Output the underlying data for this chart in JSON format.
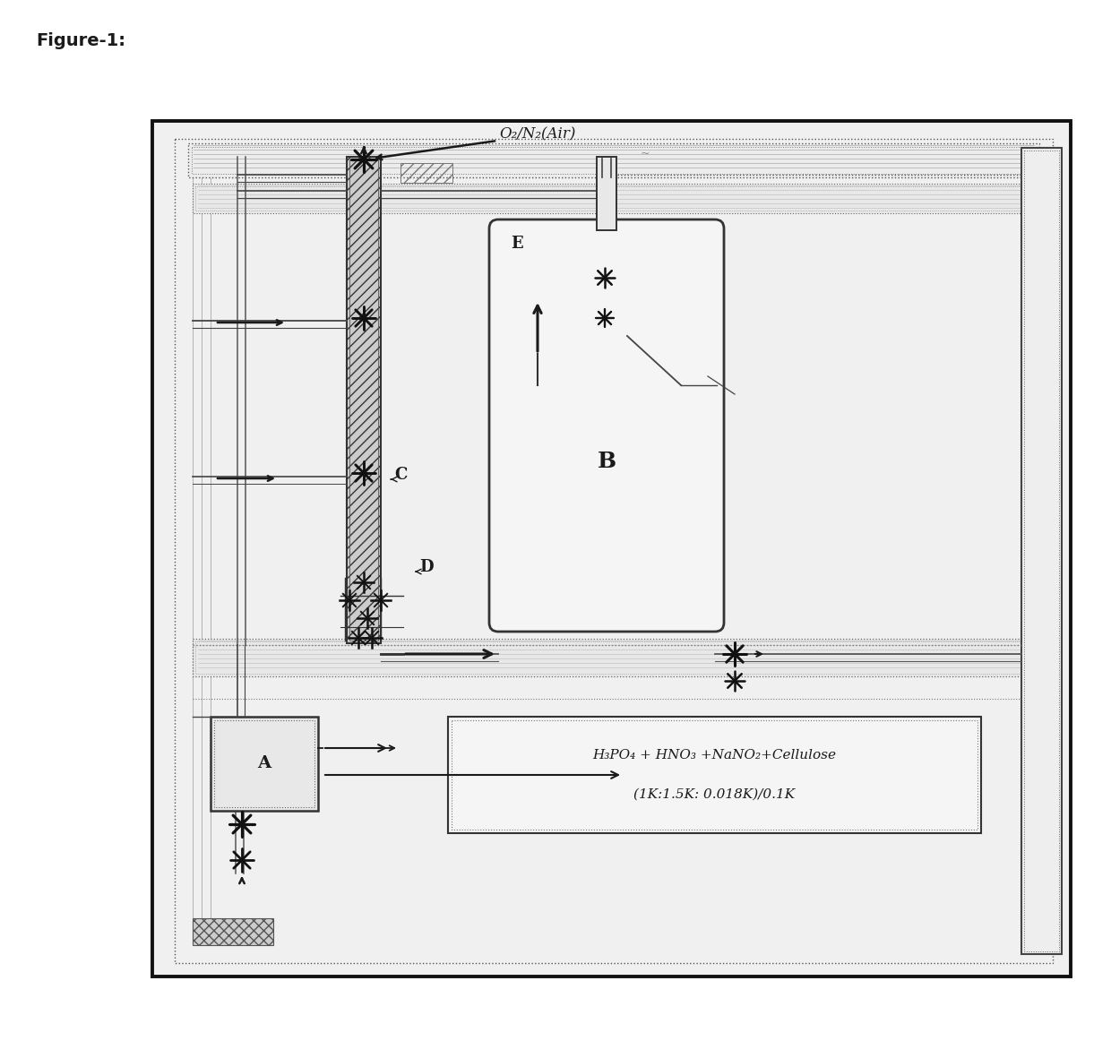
{
  "title": "Figure-1:",
  "title_fontsize": 14,
  "title_weight": "bold",
  "bg": "#ffffff",
  "ink": "#1a1a1a",
  "gray_fill": "#e8e8e8",
  "label_A": "A",
  "label_B": "B",
  "label_C": "C",
  "label_D": "D",
  "label_E": "E",
  "gas_label": "O₂/N₂(Air)",
  "formula_line1": "H₃PO₄ + HNO₃ +NaNO₂+Cellulose",
  "formula_line2": "(1K:1.5K: 0.018K)/0.1K",
  "note": "~"
}
